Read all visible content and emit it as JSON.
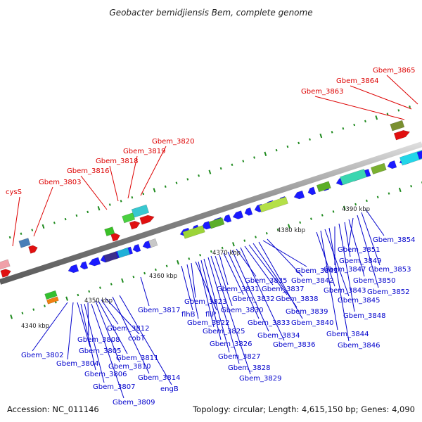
{
  "title": "Geobacter bemidjiensis Bem, complete genome",
  "accession": "Accession: NC_011146",
  "summary": "Topology: circular; Length: 4,615,150 bp; Genes: 4,090",
  "colors": {
    "backbone": "#8c8c8c",
    "forward_gene": "#1a1aff",
    "label_red": "#dd0000",
    "label_blue": "#0000cc",
    "tick": "#1e8a1e"
  },
  "scale_labels": [
    "4340 kbp",
    "4350 kbp",
    "4360 kbp",
    "4370 kbp",
    "4380 kbp",
    "4390 kbp"
  ],
  "red_labels": [
    "cysS",
    "Gbem_3803",
    "Gbem_3816",
    "Gbem_3818",
    "Gbem_3819",
    "Gbem_3820",
    "Gbem_3863",
    "Gbem_3864",
    "Gbem_3865"
  ],
  "blue_labels": [
    "Gbem_3802",
    "Gbem_3804",
    "Gbem_3805",
    "Gbem_3806",
    "Gbem_3807",
    "Gbem_3808",
    "Gbem_3809",
    "Gbem_3810",
    "Gbem_3811",
    "Gbem_3812",
    "cobT",
    "Gbem_3814",
    "engB",
    "Gbem_3817",
    "flhB",
    "Gbem_3822",
    "Gbem_3823",
    "fliP",
    "Gbem_3825",
    "Gbem_3826",
    "Gbem_3827",
    "Gbem_3828",
    "Gbem_3829",
    "Gbem_3830",
    "Gbem_3831",
    "Gbem_3832",
    "Gbem_3833",
    "Gbem_3834",
    "Gbem_3835",
    "Gbem_3836",
    "Gbem_3837",
    "Gbem_3838",
    "Gbem_3839",
    "Gbem_3840",
    "Gbem_3841",
    "Gbem_3842",
    "Gbem_3843",
    "Gbem_3844",
    "Gbem_3845",
    "Gbem_3846",
    "Gbem_3847",
    "Gbem_3848",
    "Gbem_3849",
    "Gbem_3850",
    "Gbem_3851",
    "Gbem_3852",
    "Gbem_3853",
    "Gbem_3854"
  ]
}
